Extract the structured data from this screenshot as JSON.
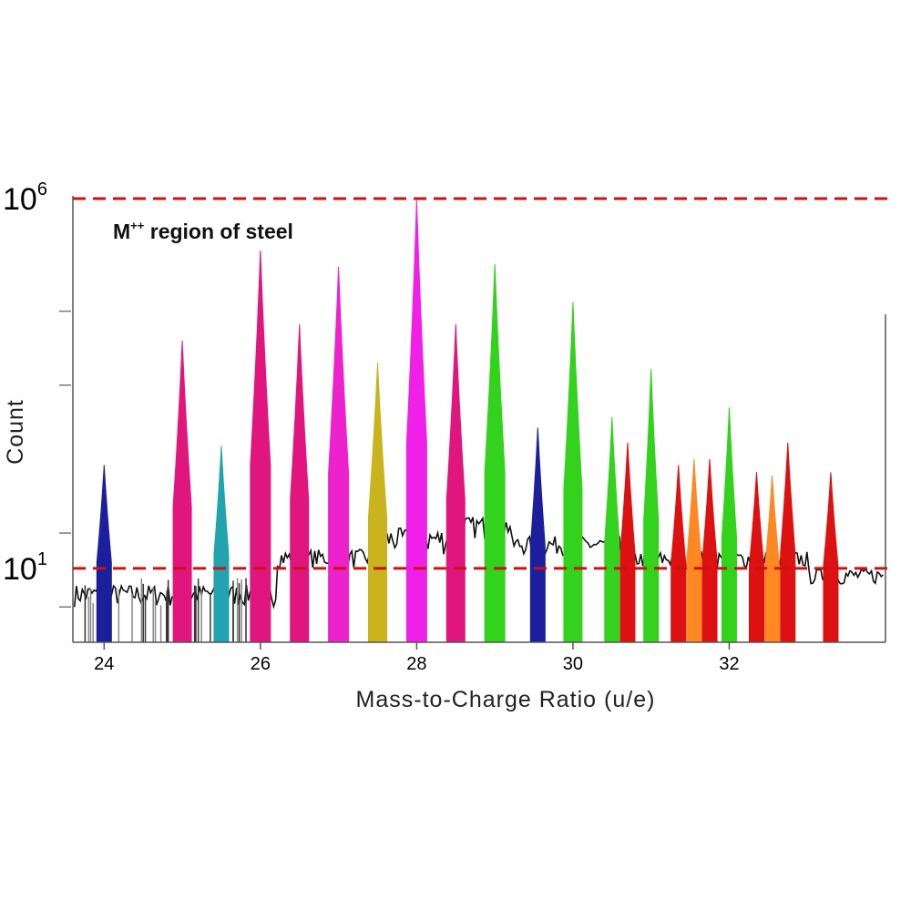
{
  "chart_data": {
    "type": "area",
    "xlabel": "Mass-to-Charge Ratio  (u/e)",
    "ylabel": "Count",
    "y_scale": "log",
    "xlim": [
      23.6,
      34.0
    ],
    "ylim": [
      1,
      1000000
    ],
    "x_ticks": [
      24,
      26,
      28,
      30,
      32
    ],
    "x_tick_labels": [
      "24",
      "26",
      "28",
      "30",
      "32"
    ],
    "y_ticks": [
      {
        "value": 1000000,
        "base": "10",
        "exp": "6"
      },
      {
        "value": 10,
        "base": "10",
        "exp": "1"
      }
    ],
    "reference_lines": [
      {
        "y": 1000000,
        "color": "#cc1111",
        "style": "dashed"
      },
      {
        "y": 10,
        "color": "#cc1111",
        "style": "dashed"
      }
    ],
    "annotation": {
      "text": "M",
      "sup": "++",
      "rest": " region of steel"
    },
    "peaks": [
      {
        "x": 24.0,
        "count": 250,
        "color": "#1b1f9e"
      },
      {
        "x": 25.0,
        "count": 12000,
        "color": "#e0167e"
      },
      {
        "x": 25.5,
        "count": 450,
        "color": "#21a3b0"
      },
      {
        "x": 26.0,
        "count": 200000,
        "color": "#e0167e"
      },
      {
        "x": 26.5,
        "count": 20000,
        "color": "#e0167e"
      },
      {
        "x": 27.0,
        "count": 120000,
        "color": "#ee22cc"
      },
      {
        "x": 27.5,
        "count": 6000,
        "color": "#c9b41e"
      },
      {
        "x": 28.0,
        "count": 950000,
        "color": "#f020e8"
      },
      {
        "x": 28.5,
        "count": 20000,
        "color": "#e0167e"
      },
      {
        "x": 29.0,
        "count": 130000,
        "color": "#33d21c"
      },
      {
        "x": 29.55,
        "count": 800,
        "color": "#1b1f9e"
      },
      {
        "x": 30.0,
        "count": 40000,
        "color": "#33d21c"
      },
      {
        "x": 30.5,
        "count": 1100,
        "color": "#33d21c"
      },
      {
        "x": 30.7,
        "count": 500,
        "color": "#dd1111"
      },
      {
        "x": 31.0,
        "count": 5000,
        "color": "#33d21c"
      },
      {
        "x": 31.35,
        "count": 250,
        "color": "#dd1111"
      },
      {
        "x": 31.55,
        "count": 300,
        "color": "#ff8822"
      },
      {
        "x": 31.75,
        "count": 300,
        "color": "#dd1111"
      },
      {
        "x": 32.0,
        "count": 1500,
        "color": "#33d21c"
      },
      {
        "x": 32.35,
        "count": 200,
        "color": "#dd1111"
      },
      {
        "x": 32.55,
        "count": 180,
        "color": "#ff8822"
      },
      {
        "x": 32.75,
        "count": 500,
        "color": "#dd1111"
      },
      {
        "x": 33.3,
        "count": 200,
        "color": "#dd1111"
      }
    ],
    "background_color": "#111111"
  }
}
